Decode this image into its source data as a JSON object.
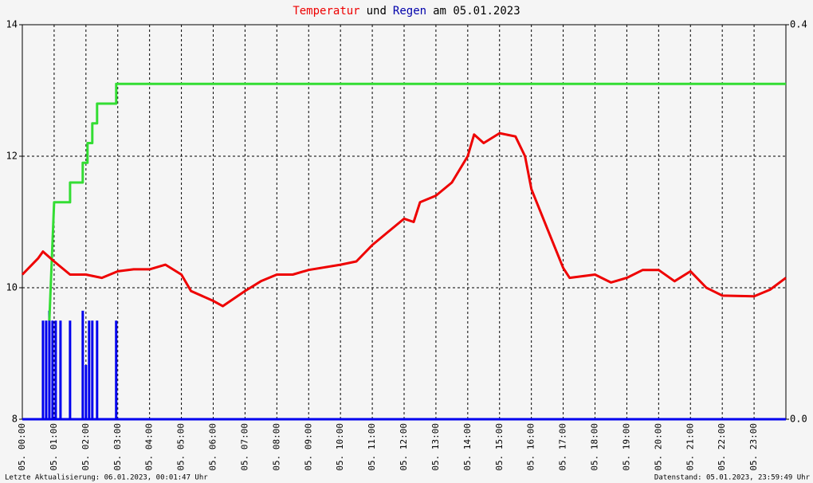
{
  "chart_data": {
    "type": "line",
    "title_parts": [
      {
        "text": "Temperatur",
        "color": "#ee0000"
      },
      {
        "text": "und",
        "color": "#000000"
      },
      {
        "text": "Regen",
        "color": "#0000aa"
      },
      {
        "text": "am 05.01.2023",
        "color": "#000000"
      }
    ],
    "xlim": [
      0,
      24
    ],
    "xticks": [
      {
        "value": 0,
        "label": "05. 00:00"
      },
      {
        "value": 1,
        "label": "05. 01:00"
      },
      {
        "value": 2,
        "label": "05. 02:00"
      },
      {
        "value": 3,
        "label": "05. 03:00"
      },
      {
        "value": 4,
        "label": "05. 04:00"
      },
      {
        "value": 5,
        "label": "05. 05:00"
      },
      {
        "value": 6,
        "label": "05. 06:00"
      },
      {
        "value": 7,
        "label": "05. 07:00"
      },
      {
        "value": 8,
        "label": "05. 08:00"
      },
      {
        "value": 9,
        "label": "05. 09:00"
      },
      {
        "value": 10,
        "label": "05. 10:00"
      },
      {
        "value": 11,
        "label": "05. 11:00"
      },
      {
        "value": 12,
        "label": "05. 12:00"
      },
      {
        "value": 13,
        "label": "05. 13:00"
      },
      {
        "value": 14,
        "label": "05. 14:00"
      },
      {
        "value": 15,
        "label": "05. 15:00"
      },
      {
        "value": 16,
        "label": "05. 16:00"
      },
      {
        "value": 17,
        "label": "05. 17:00"
      },
      {
        "value": 18,
        "label": "05. 18:00"
      },
      {
        "value": 19,
        "label": "05. 19:00"
      },
      {
        "value": 20,
        "label": "05. 20:00"
      },
      {
        "value": 21,
        "label": "05. 21:00"
      },
      {
        "value": 22,
        "label": "05. 22:00"
      },
      {
        "value": 23,
        "label": "05. 23:00"
      }
    ],
    "ylim": [
      8,
      14
    ],
    "yticks": [
      8,
      10,
      12,
      14
    ],
    "y2lim": [
      0,
      0.4
    ],
    "y2ticks": [
      {
        "value": 0,
        "label": "0.0"
      },
      {
        "value": 0.4,
        "label": "0.4"
      }
    ],
    "grid": true,
    "series": [
      {
        "type": "line",
        "color": "#ee0000",
        "axis": "y",
        "x": [
          0,
          0.5,
          0.65,
          1,
          1.5,
          2,
          2.5,
          3,
          3.5,
          4,
          4.5,
          5,
          5.3,
          6,
          6.3,
          7,
          7.5,
          8,
          8.5,
          9,
          10,
          10.5,
          11,
          11.5,
          12,
          12.3,
          12.5,
          13,
          13.5,
          14,
          14.2,
          14.5,
          15,
          15.5,
          15.8,
          16,
          16.5,
          17,
          17.2,
          18,
          18.5,
          19,
          19.5,
          20,
          20.5,
          21,
          21.5,
          22,
          23,
          23.5,
          24
        ],
        "values": [
          10.2,
          10.45,
          10.55,
          10.4,
          10.2,
          10.2,
          10.15,
          10.25,
          10.28,
          10.28,
          10.35,
          10.2,
          9.95,
          9.8,
          9.72,
          9.95,
          10.1,
          10.2,
          10.2,
          10.27,
          10.35,
          10.4,
          10.65,
          10.85,
          11.05,
          11.0,
          11.3,
          11.4,
          11.6,
          12.0,
          12.33,
          12.2,
          12.35,
          12.3,
          12.0,
          11.5,
          10.9,
          10.3,
          10.15,
          10.2,
          10.08,
          10.15,
          10.27,
          10.27,
          10.1,
          10.25,
          10.0,
          9.88,
          9.87,
          9.97,
          10.15
        ]
      },
      {
        "type": "line",
        "color": "#33dd33",
        "axis": "y2",
        "x": [
          0.85,
          0.95,
          1.0,
          1.5,
          1.5,
          1.9,
          1.9,
          2.05,
          2.05,
          2.2,
          2.2,
          2.35,
          2.35,
          2.95,
          2.95,
          24
        ],
        "values": [
          0.1,
          0.18,
          0.22,
          0.22,
          0.24,
          0.24,
          0.26,
          0.26,
          0.28,
          0.28,
          0.3,
          0.3,
          0.32,
          0.32,
          0.34,
          0.34
        ]
      },
      {
        "type": "bar",
        "color": "#0000ee",
        "axis": "y2",
        "x": [
          0.65,
          0.75,
          0.85,
          0.95,
          1.05,
          1.2,
          1.5,
          1.9,
          2.0,
          2.1,
          2.2,
          2.35,
          2.95
        ],
        "values": [
          0.1,
          0.1,
          0.11,
          0.1,
          0.1,
          0.1,
          0.1,
          0.11,
          0.055,
          0.1,
          0.1,
          0.1,
          0.1
        ]
      }
    ],
    "footer_left": "Letzte Aktualisierung: 06.01.2023, 00:01:47 Uhr",
    "footer_right": "Datenstand: 05.01.2023, 23:59:49 Uhr"
  }
}
